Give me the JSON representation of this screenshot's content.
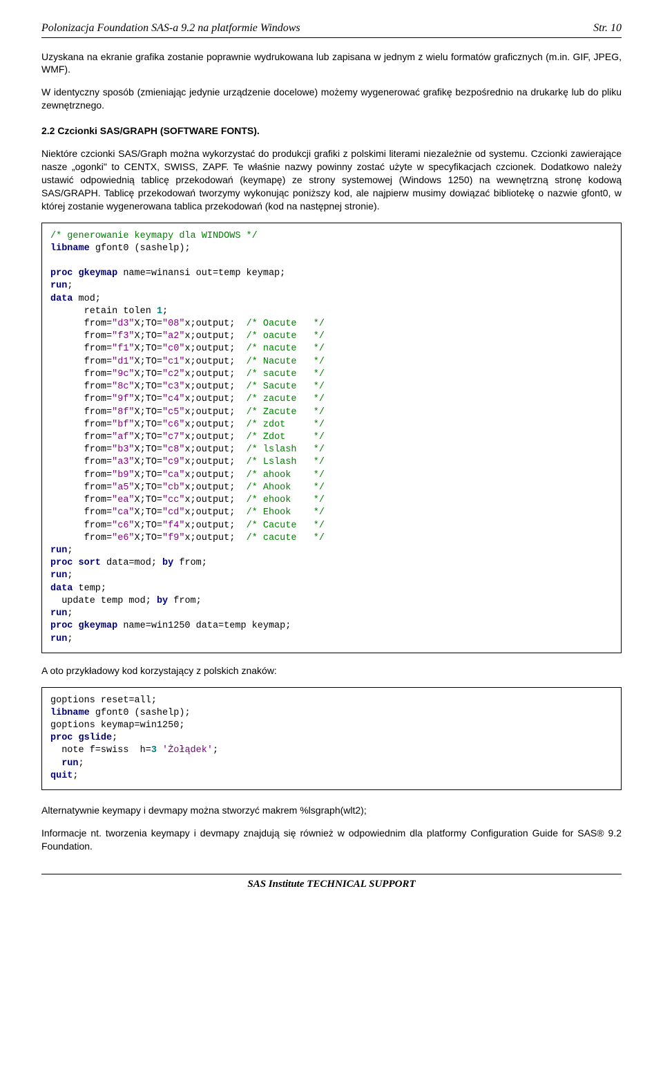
{
  "header": {
    "left": "Polonizacja Foundation SAS-a 9.2 na platformie Windows",
    "right": "Str. 10"
  },
  "p1": "Uzyskana na ekranie grafika zostanie poprawnie wydrukowana lub zapisana w jednym z wielu formatów graficznych (m.in. GIF, JPEG, WMF).",
  "p2": "W identyczny sposób (zmieniając jedynie urządzenie docelowe) możemy wygenerować grafikę bezpośrednio na drukarkę lub do pliku zewnętrznego.",
  "section_title": "2.2 Czcionki SAS/GRAPH (SOFTWARE FONTS).",
  "p3": "Niektóre czcionki SAS/Graph można wykorzystać do produkcji grafiki z polskimi literami niezależnie od systemu. Czcionki zawierające nasze „ogonki\" to CENTX, SWISS, ZAPF. Te właśnie nazwy powinny zostać użyte w specyfikacjach czcionek. Dodatkowo należy ustawić odpowiednią tablicę przekodowań (keymapę) ze strony systemowej (Windows 1250) na wewnętrzną stronę kodową SAS/GRAPH. Tablicę przekodowań tworzymy wykonując poniższy kod, ale najpierw musimy dowiązać bibliotekę o nazwie gfont0, w której zostanie wygenerowana tablica przekodowań (kod na następnej stronie).",
  "code1": {
    "comment1": "/* generowanie keymapy dla WINDOWS */",
    "libname": "libname",
    "libname_args": " gfont0 (sashelp);",
    "proc_gkeymap1": "proc gkeymap",
    "proc_gkeymap1_args": " name=winansi out=temp keymap;",
    "run": "run",
    "data": "data",
    "data_args": " mod;",
    "retain": "retain",
    "retain_args": " tolen ",
    "retain_num": "1",
    "rows": [
      {
        "f": "\"d3\"",
        "t": "\"08\"",
        "c": "/* Oacute   */"
      },
      {
        "f": "\"f3\"",
        "t": "\"a2\"",
        "c": "/* oacute   */"
      },
      {
        "f": "\"f1\"",
        "t": "\"c0\"",
        "c": "/* nacute   */"
      },
      {
        "f": "\"d1\"",
        "t": "\"c1\"",
        "c": "/* Nacute   */"
      },
      {
        "f": "\"9c\"",
        "t": "\"c2\"",
        "c": "/* sacute   */"
      },
      {
        "f": "\"8c\"",
        "t": "\"c3\"",
        "c": "/* Sacute   */"
      },
      {
        "f": "\"9f\"",
        "t": "\"c4\"",
        "c": "/* zacute   */"
      },
      {
        "f": "\"8f\"",
        "t": "\"c5\"",
        "c": "/* Zacute   */"
      },
      {
        "f": "\"bf\"",
        "t": "\"c6\"",
        "c": "/* zdot     */"
      },
      {
        "f": "\"af\"",
        "t": "\"c7\"",
        "c": "/* Zdot     */"
      },
      {
        "f": "\"b3\"",
        "t": "\"c8\"",
        "c": "/* lslash   */"
      },
      {
        "f": "\"a3\"",
        "t": "\"c9\"",
        "c": "/* Lslash   */"
      },
      {
        "f": "\"b9\"",
        "t": "\"ca\"",
        "c": "/* ahook    */"
      },
      {
        "f": "\"a5\"",
        "t": "\"cb\"",
        "c": "/* Ahook    */"
      },
      {
        "f": "\"ea\"",
        "t": "\"cc\"",
        "c": "/* ehook    */"
      },
      {
        "f": "\"ca\"",
        "t": "\"cd\"",
        "c": "/* Ehook    */"
      },
      {
        "f": "\"c6\"",
        "t": "\"f4\"",
        "c": "/* Cacute   */"
      },
      {
        "f": "\"e6\"",
        "t": "\"f9\"",
        "c": "/* cacute   */"
      }
    ],
    "proc_sort": "proc sort",
    "proc_sort_args": " data=mod; ",
    "by": "by",
    "by_args": " from;",
    "data_temp": " temp;",
    "update_line": "  update temp mod; ",
    "proc_gkeymap2": "proc gkeymap",
    "proc_gkeymap2_args": " name=win1250 data=temp keymap;"
  },
  "p4": "A oto przykładowy kod korzystający z polskich znaków:",
  "code2": {
    "l1a": "goptions ",
    "l1b": "reset",
    "l1c": "=all;",
    "l2a": "libname",
    "l2b": " gfont0 (sashelp);",
    "l3a": "goptions ",
    "l3b": "keymap",
    "l3c": "=win1250;",
    "l4a": "proc gslide",
    "l4b": ";",
    "l5a": "  note f=swiss  h=",
    "l5b": "3",
    "l5c": " ",
    "l5d": "'Żołądek'",
    "l5e": ";",
    "l6a": "  ",
    "l6b": "run",
    "l6c": ";",
    "l7a": "quit",
    "l7b": ";"
  },
  "p5": "Alternatywnie keymapy i devmapy można stworzyć makrem %lsgraph(wlt2);",
  "p6": "Informacje nt. tworzenia keymapy i devmapy znajdują się również w odpowiednim dla platformy Configuration Guide for SAS® 9.2 Foundation.",
  "footer": "SAS Institute TECHNICAL SUPPORT"
}
